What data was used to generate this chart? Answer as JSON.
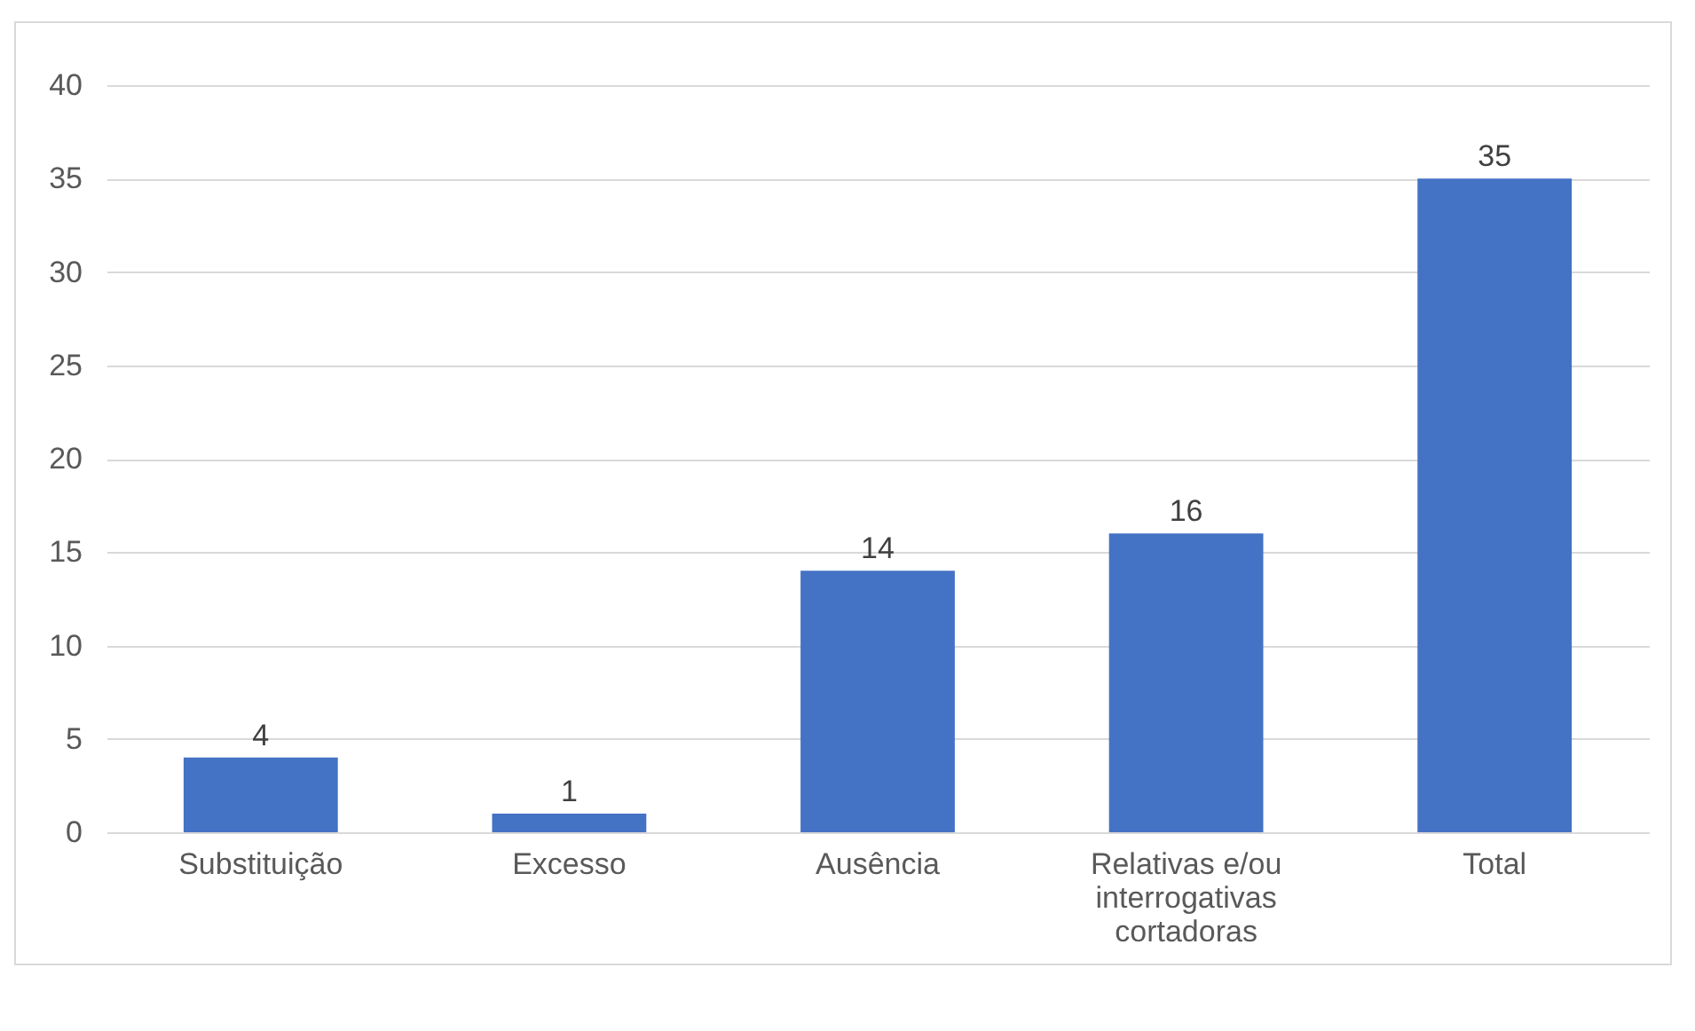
{
  "chart_data": {
    "type": "bar",
    "categories": [
      "Substituição",
      "Excesso",
      "Ausência",
      "Relativas e/ou interrogativas cortadoras",
      "Total"
    ],
    "values": [
      4,
      1,
      14,
      16,
      35
    ],
    "color": "#4472c4",
    "ylim": [
      0,
      40
    ],
    "yticks": [
      0,
      5,
      10,
      15,
      20,
      25,
      30,
      35,
      40
    ],
    "grid": "y",
    "data_labels": true
  }
}
